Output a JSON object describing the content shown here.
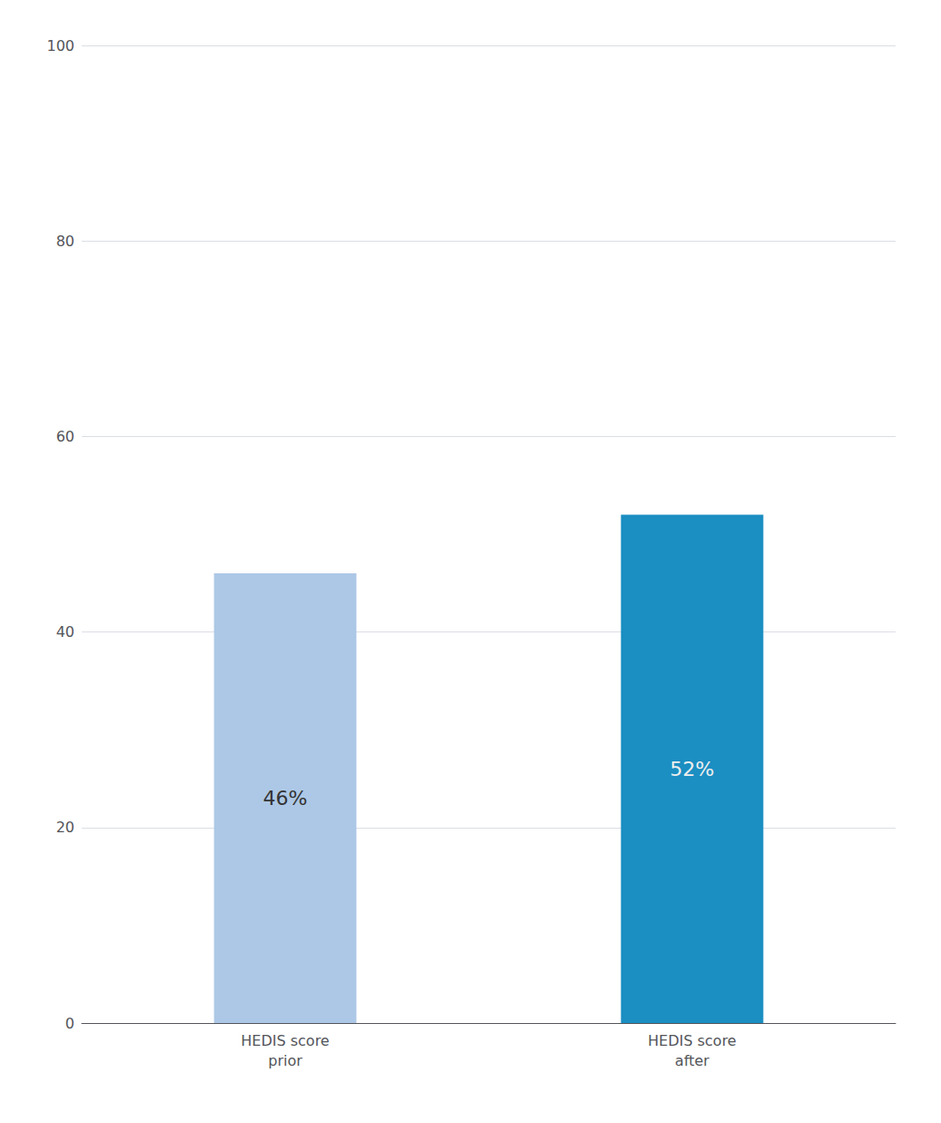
{
  "chart_data": {
    "type": "bar",
    "categories": [
      "HEDIS score\nprior",
      "HEDIS score\nafter"
    ],
    "values": [
      46,
      52
    ],
    "value_labels": [
      "46%",
      "52%"
    ],
    "colors": [
      "#adc8e6",
      "#1b8ec2"
    ],
    "data_labels": true,
    "ylim": [
      0,
      100
    ],
    "yticks": [
      0,
      20,
      40,
      60,
      80,
      100
    ],
    "grid": true
  }
}
